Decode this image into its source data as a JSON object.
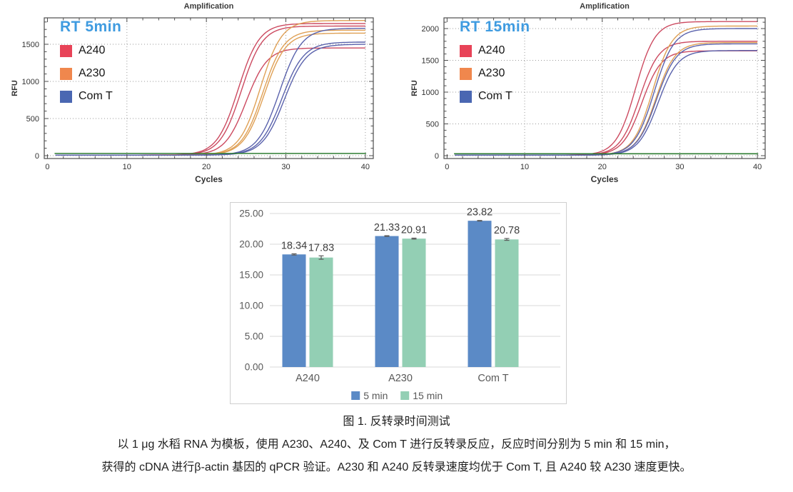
{
  "chart_data": [
    {
      "type": "line",
      "title": "Amplification",
      "subtitle": "RT 5min",
      "xlabel": "Cycles",
      "ylabel": "RFU",
      "x_ticks": [
        0,
        10,
        20,
        30,
        40
      ],
      "y_ticks": [
        0,
        500,
        1000,
        1500
      ],
      "xlim": [
        -0.4,
        41
      ],
      "ylim": [
        -40,
        1856
      ],
      "grid": "dotted",
      "legend_position": "top-left-inside",
      "subtitle_color": "#3f9be0",
      "legend": [
        {
          "label": "A240",
          "color": "#e84358"
        },
        {
          "label": "A230",
          "color": "#f0874d"
        },
        {
          "label": "Com T",
          "color": "#4a67b2"
        }
      ],
      "threshold_line": {
        "value": 30,
        "color": "#2e7d32"
      },
      "series": [
        {
          "name": "A240",
          "color": "#cc4a60",
          "slope": 0.75,
          "replicates": [
            {
              "ct": 24.0,
              "plateau": 1780
            },
            {
              "ct": 24.4,
              "plateau": 1745
            },
            {
              "ct": 25.0,
              "plateau": 1450
            }
          ]
        },
        {
          "name": "A230",
          "color": "#dfa055",
          "slope": 0.75,
          "replicates": [
            {
              "ct": 26.8,
              "plateau": 1820
            },
            {
              "ct": 27.1,
              "plateau": 1690
            },
            {
              "ct": 27.3,
              "plateau": 1650
            }
          ]
        },
        {
          "name": "Com T",
          "color": "#5a62ac",
          "slope": 0.72,
          "replicates": [
            {
              "ct": 29.2,
              "plateau": 1715
            },
            {
              "ct": 29.5,
              "plateau": 1530
            },
            {
              "ct": 29.8,
              "plateau": 1500
            }
          ]
        }
      ]
    },
    {
      "type": "line",
      "title": "Amplification",
      "subtitle": "RT 15min",
      "xlabel": "Cycles",
      "ylabel": "RFU",
      "x_ticks": [
        0,
        10,
        20,
        30,
        40
      ],
      "y_ticks": [
        0,
        500,
        1000,
        1500,
        2000
      ],
      "xlim": [
        -0.4,
        41
      ],
      "ylim": [
        -45,
        2169
      ],
      "grid": "dotted",
      "legend_position": "top-left-inside",
      "subtitle_color": "#3f9be0",
      "legend": [
        {
          "label": "A240",
          "color": "#e84358"
        },
        {
          "label": "A230",
          "color": "#f0874d"
        },
        {
          "label": "Com T",
          "color": "#4a67b2"
        }
      ],
      "threshold_line": {
        "value": 30,
        "color": "#2e7d32"
      },
      "series": [
        {
          "name": "A240",
          "color": "#cc4a60",
          "slope": 0.8,
          "replicates": [
            {
              "ct": 24.3,
              "plateau": 2110
            },
            {
              "ct": 24.8,
              "plateau": 1800
            },
            {
              "ct": 25.1,
              "plateau": 1650
            }
          ]
        },
        {
          "name": "A230",
          "color": "#dfa055",
          "slope": 0.8,
          "replicates": [
            {
              "ct": 26.5,
              "plateau": 2040
            },
            {
              "ct": 26.9,
              "plateau": 1780
            }
          ]
        },
        {
          "name": "Com T",
          "color": "#5a62ac",
          "slope": 0.78,
          "replicates": [
            {
              "ct": 26.7,
              "plateau": 2000
            },
            {
              "ct": 27.0,
              "plateau": 1760
            },
            {
              "ct": 27.2,
              "plateau": 1655
            }
          ]
        }
      ]
    },
    {
      "type": "bar",
      "categories": [
        "A240",
        "A230",
        "Com T"
      ],
      "series": [
        {
          "name": "5 min",
          "color": "#5b8ac6",
          "values": [
            18.34,
            21.33,
            23.82
          ],
          "errors": [
            0.1,
            0.06,
            0.05
          ]
        },
        {
          "name": "15 min",
          "color": "#93cfb4",
          "values": [
            17.83,
            20.91,
            20.78
          ],
          "errors": [
            0.28,
            0.08,
            0.15
          ]
        }
      ],
      "data_labels": [
        [
          "18.34",
          "21.33",
          "23.82"
        ],
        [
          "17.83",
          "20.91",
          "20.78"
        ]
      ],
      "y_ticks": [
        "0.00",
        "5.00",
        "10.00",
        "15.00",
        "20.00",
        "25.00"
      ],
      "ylim": [
        0,
        25
      ],
      "grid": "horizontal",
      "legend_position": "bottom"
    }
  ],
  "caption": {
    "line1": "图 1. 反转录时间测试",
    "line2": "以 1 μg 水稻 RNA 为模板，使用 A230、A240、及 Com T 进行反转录反应，反应时间分别为 5 min 和 15 min，",
    "line3": "获得的 cDNA 进行β-actin 基因的 qPCR 验证。A230 和 A240 反转录速度均优于 Com T, 且 A240 较 A230 速度更快。"
  }
}
